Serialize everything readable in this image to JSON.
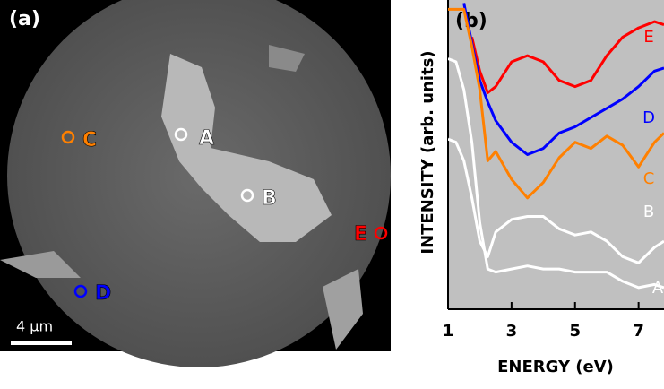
{
  "image_panel": {
    "label": "(a)",
    "scale_bar": "4 μm",
    "markers": [
      {
        "label": "A",
        "color": "#ffffff"
      },
      {
        "label": "B",
        "color": "#ffffff"
      },
      {
        "label": "C",
        "color": "#ff8000"
      },
      {
        "label": "D",
        "color": "#0000ff"
      },
      {
        "label": "E",
        "color": "#ff0000"
      }
    ]
  },
  "chart_data": {
    "type": "line",
    "panel_label": "(b)",
    "x_label": "ENERGY (eV)",
    "y_label": "INTENSITY (arb. units)",
    "xlim": [
      1,
      7.8
    ],
    "xticks": [
      1,
      3,
      5,
      7
    ],
    "ylim": [
      0,
      100
    ],
    "x": [
      1,
      1.25,
      1.5,
      1.75,
      2,
      2.25,
      2.5,
      3,
      3.5,
      4,
      4.5,
      5,
      5.5,
      6,
      6.5,
      7,
      7.5,
      7.8
    ],
    "series": [
      {
        "name": "E",
        "color": "#ff0000",
        "values": [
          null,
          null,
          null,
          88,
          77,
          70,
          72,
          80,
          82,
          80,
          74,
          72,
          74,
          82,
          88,
          91,
          93,
          92
        ]
      },
      {
        "name": "D",
        "color": "#0000ff",
        "values": [
          null,
          null,
          99,
          86,
          74,
          67,
          61,
          54,
          50,
          52,
          57,
          59,
          62,
          65,
          68,
          72,
          77,
          78
        ]
      },
      {
        "name": "C",
        "color": "#ff8000",
        "values": [
          97,
          97,
          97,
          85,
          71,
          48,
          51,
          42,
          36,
          41,
          49,
          54,
          52,
          56,
          53,
          46,
          54,
          57
        ]
      },
      {
        "name": "B",
        "color": "#ffffff",
        "values": [
          55,
          54,
          48,
          36,
          22,
          17,
          25,
          29,
          30,
          30,
          26,
          24,
          25,
          22,
          17,
          15,
          20,
          22
        ]
      },
      {
        "name": "A",
        "color": "#ffffff",
        "values": [
          81,
          80,
          71,
          54,
          28,
          13,
          12,
          13,
          14,
          13,
          13,
          12,
          12,
          12,
          9,
          7,
          8,
          7
        ]
      }
    ]
  }
}
